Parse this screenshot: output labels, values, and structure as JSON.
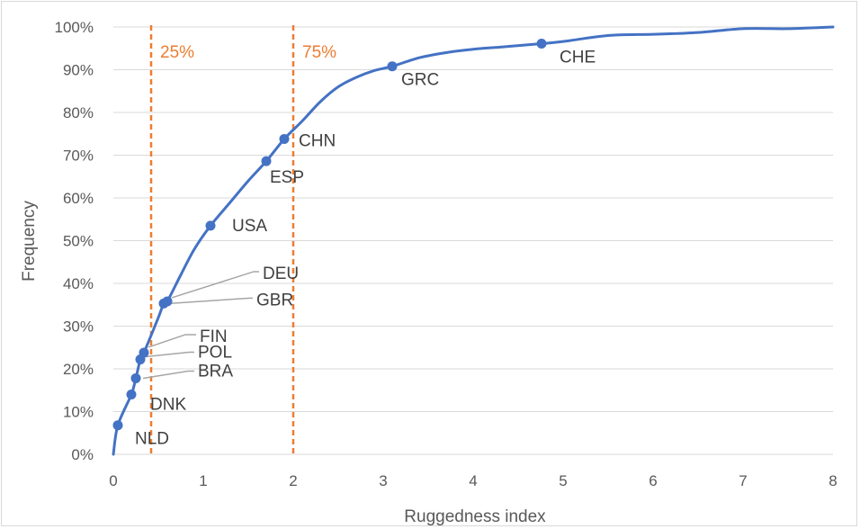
{
  "chart_data": {
    "type": "line",
    "xlabel": "Ruggedness index",
    "ylabel": "Frequency",
    "xlim": [
      0,
      8
    ],
    "ylim": [
      0,
      100
    ],
    "x_ticks": [
      "0",
      "1",
      "2",
      "3",
      "4",
      "5",
      "6",
      "7",
      "8"
    ],
    "y_ticks": [
      "0%",
      "10%",
      "20%",
      "30%",
      "40%",
      "50%",
      "60%",
      "70%",
      "80%",
      "90%",
      "100%"
    ],
    "grid": "horizontal",
    "colors": {
      "line": "#4472c4",
      "quantile": "#ed7d31",
      "grid": "#d9d9d9",
      "leader": "#a6a6a6"
    },
    "series": [
      {
        "x": [
          0.0,
          0.05,
          0.2,
          0.25,
          0.3,
          0.34,
          0.5,
          0.56,
          0.6,
          0.75,
          0.9,
          1.08,
          1.3,
          1.5,
          1.7,
          1.9,
          2.1,
          2.3,
          2.5,
          2.7,
          2.9,
          3.1,
          3.4,
          3.7,
          4.0,
          4.3,
          4.76,
          5.0,
          5.5,
          6.0,
          6.5,
          7.0,
          7.5,
          8.0
        ],
        "y": [
          0,
          6.8,
          14,
          17.8,
          22.2,
          23.8,
          32,
          35.3,
          35.8,
          42,
          48,
          53.5,
          59,
          64,
          68.6,
          73.8,
          78,
          82.5,
          86,
          88.2,
          89.8,
          90.8,
          92.8,
          94,
          94.8,
          95.3,
          96.1,
          96.6,
          98,
          98.3,
          98.7,
          99.6,
          99.6,
          100
        ]
      }
    ],
    "points": [
      {
        "label": "NLD",
        "x": 0.05,
        "y": 6.8
      },
      {
        "label": "DNK",
        "x": 0.2,
        "y": 14
      },
      {
        "label": "BRA",
        "x": 0.25,
        "y": 17.8
      },
      {
        "label": "POL",
        "x": 0.3,
        "y": 22.2
      },
      {
        "label": "FIN",
        "x": 0.34,
        "y": 23.8
      },
      {
        "label": "GBR",
        "x": 0.56,
        "y": 35.3
      },
      {
        "label": "DEU",
        "x": 0.6,
        "y": 35.8
      },
      {
        "label": "USA",
        "x": 1.08,
        "y": 53.5
      },
      {
        "label": "ESP",
        "x": 1.7,
        "y": 68.6
      },
      {
        "label": "CHN",
        "x": 1.9,
        "y": 73.8
      },
      {
        "label": "GRC",
        "x": 3.1,
        "y": 90.8
      },
      {
        "label": "CHE",
        "x": 4.76,
        "y": 96.1
      }
    ],
    "quantiles": [
      {
        "label": "25%",
        "x": 0.42
      },
      {
        "label": "75%",
        "x": 2.0
      }
    ]
  }
}
